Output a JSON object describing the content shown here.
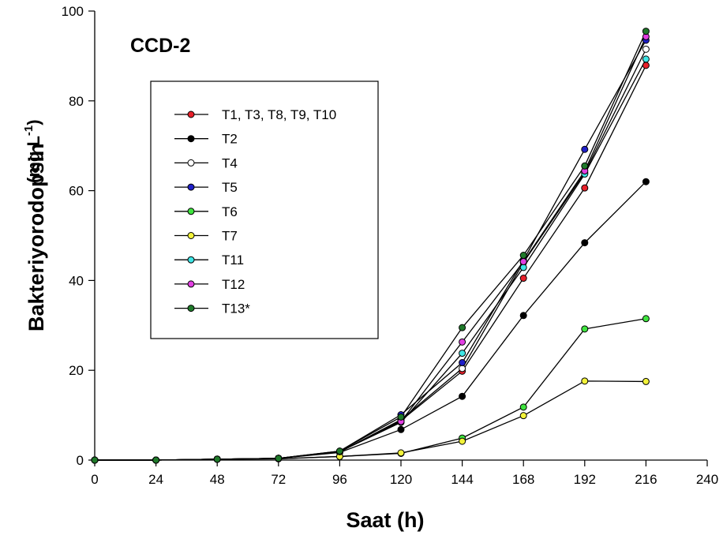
{
  "chart_data": {
    "type": "line",
    "panel_label": "CCD-2",
    "xlabel": "Saat (h)",
    "ylabel_main": "Bakteriyorodopsin",
    "ylabel_unit_prefix": "(mg L",
    "ylabel_unit_exp": "-1",
    "ylabel_unit_suffix": ")",
    "xlim": [
      0,
      240
    ],
    "ylim": [
      0,
      100
    ],
    "xticks": [
      0,
      24,
      48,
      72,
      96,
      120,
      144,
      168,
      192,
      216,
      240
    ],
    "yticks": [
      0,
      20,
      40,
      60,
      80,
      100
    ],
    "grid": false,
    "legend_position": "upper-left",
    "x": [
      0,
      24,
      48,
      72,
      96,
      120,
      144,
      168,
      192,
      216
    ],
    "series": [
      {
        "name": "T1, T3, T8, T9, T10",
        "color": "#e8202a",
        "values": [
          0,
          0,
          0.2,
          0.4,
          1.8,
          8.8,
          19.8,
          40.5,
          60.6,
          87.9
        ]
      },
      {
        "name": "T2",
        "color": "#000000",
        "values": [
          0,
          0,
          0.2,
          0.4,
          1.7,
          6.8,
          14.2,
          32.2,
          48.4,
          62.0
        ]
      },
      {
        "name": "T4",
        "color": "#ffffff",
        "values": [
          0,
          0,
          0.2,
          0.4,
          1.8,
          9.0,
          20.4,
          44.0,
          64.0,
          91.5
        ]
      },
      {
        "name": "T5",
        "color": "#1f1fc8",
        "values": [
          0,
          0,
          0.2,
          0.4,
          2.0,
          10.1,
          21.7,
          44.5,
          69.2,
          93.5
        ]
      },
      {
        "name": "T6",
        "color": "#3fe43f",
        "values": [
          0,
          0,
          0.2,
          0.3,
          0.8,
          1.5,
          4.9,
          11.8,
          29.2,
          31.5
        ]
      },
      {
        "name": "T7",
        "color": "#f2f23a",
        "values": [
          0,
          0,
          0.2,
          0.3,
          0.8,
          1.6,
          4.2,
          9.9,
          17.6,
          17.5
        ]
      },
      {
        "name": "T11",
        "color": "#3fe6e6",
        "values": [
          0,
          0,
          0.2,
          0.4,
          1.9,
          8.4,
          23.8,
          42.9,
          63.7,
          89.3
        ]
      },
      {
        "name": "T12",
        "color": "#e23fe2",
        "values": [
          0,
          0,
          0.2,
          0.4,
          1.9,
          8.6,
          26.3,
          44.2,
          64.4,
          94.3
        ]
      },
      {
        "name": "T13*",
        "color": "#1f7a2a",
        "values": [
          0,
          0,
          0.2,
          0.4,
          2.0,
          9.6,
          29.5,
          45.6,
          65.5,
          95.5
        ]
      }
    ]
  }
}
